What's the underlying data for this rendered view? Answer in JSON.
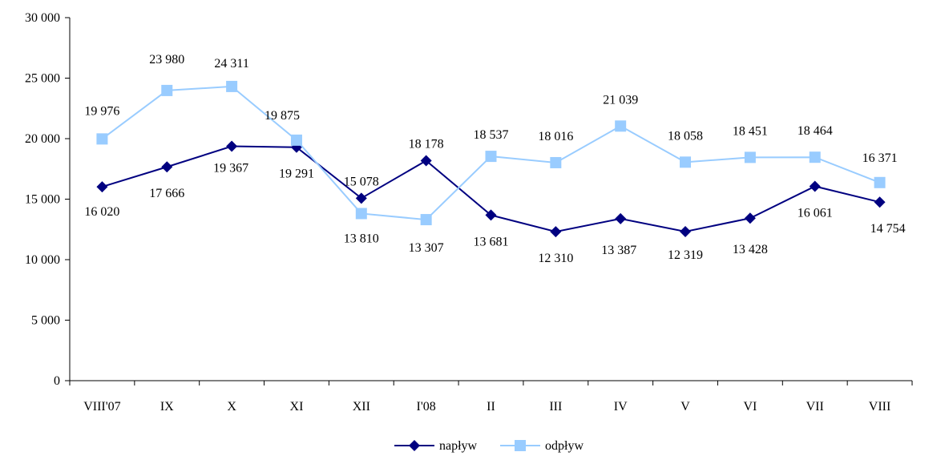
{
  "chart_data": {
    "type": "line",
    "title": "",
    "xlabel": "",
    "ylabel": "",
    "categories": [
      "VIII'07",
      "IX",
      "X",
      "XI",
      "XII",
      "I'08",
      "II",
      "III",
      "IV",
      "V",
      "VI",
      "VII",
      "VIII"
    ],
    "ylim": [
      0,
      30000
    ],
    "yticks": [
      0,
      5000,
      10000,
      15000,
      20000,
      25000,
      30000
    ],
    "ytick_labels": [
      "0",
      "5 000",
      "10 000",
      "15 000",
      "20 000",
      "25 000",
      "30 000"
    ],
    "grid": false,
    "legend_position": "bottom",
    "series": [
      {
        "name": "napływ",
        "color": "#000080",
        "marker": "diamond",
        "values": [
          16020,
          17666,
          19367,
          19291,
          15078,
          18178,
          13681,
          12310,
          13387,
          12319,
          13428,
          16061,
          14754
        ],
        "labels": [
          "16 020",
          "17 666",
          "19 367",
          "19 291",
          "15 078",
          "18 178",
          "13 681",
          "12 310",
          "13 387",
          "12 319",
          "13 428",
          "16 061",
          "14 754"
        ]
      },
      {
        "name": "odpływ",
        "color": "#99ccff",
        "marker": "square",
        "values": [
          19976,
          23980,
          24311,
          19875,
          13810,
          13307,
          18537,
          18016,
          21039,
          18058,
          18451,
          18464,
          16371
        ],
        "labels": [
          "19 976",
          "23 980",
          "24 311",
          "19 875",
          "13 810",
          "13 307",
          "18 537",
          "18 016",
          "21 039",
          "18 058",
          "18 451",
          "18 464",
          "16 371"
        ]
      }
    ]
  }
}
